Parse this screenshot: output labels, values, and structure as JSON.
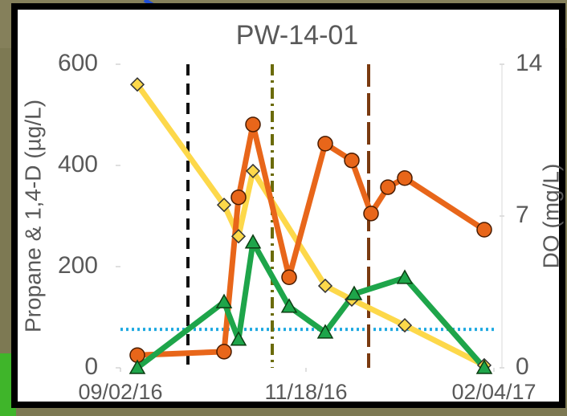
{
  "chart_data": {
    "type": "line",
    "title": "PW-14-01",
    "y_label": "Propane & 1,4-D (µg/L)",
    "y2_label": "DO (mg/L)",
    "xlim": [
      "2016-09-02",
      "2017-02-04"
    ],
    "xticks": [
      {
        "value": "2016-09-02",
        "label": "09/02/16"
      },
      {
        "value": "2016-11-18",
        "label": "11/18/16"
      },
      {
        "value": "2017-02-04",
        "label": "02/04/17"
      }
    ],
    "ylim": [
      0,
      600
    ],
    "yticks": [
      0,
      200,
      400,
      600
    ],
    "y2lim": [
      0,
      14
    ],
    "y2ticks": [
      0,
      7,
      14
    ],
    "series": [
      {
        "color": "#fdd84a",
        "marker": "diamond",
        "x": [
          "2016-09-09",
          "2016-10-15",
          "2016-10-21",
          "2016-10-27",
          "2016-11-26",
          "2016-12-07",
          "2016-12-29",
          "2017-01-31"
        ],
        "values": [
          560,
          322,
          260,
          389,
          162,
          135,
          84,
          5
        ]
      },
      {
        "color": "#e8661a",
        "marker": "circle",
        "x": [
          "2016-09-09",
          "2016-10-15",
          "2016-10-21",
          "2016-10-27",
          "2016-11-11",
          "2016-11-26",
          "2016-12-07",
          "2016-12-15",
          "2016-12-22",
          "2016-12-29",
          "2017-01-31"
        ],
        "values": [
          25,
          32,
          337,
          481,
          179,
          443,
          410,
          305,
          357,
          375,
          273
        ]
      },
      {
        "color": "#1ea54a",
        "marker": "triangle",
        "x": [
          "2016-09-09",
          "2016-10-15",
          "2016-10-21",
          "2016-10-27",
          "2016-11-11",
          "2016-11-26",
          "2016-12-08",
          "2016-12-29",
          "2017-01-31"
        ],
        "values": [
          0,
          130,
          56,
          248,
          121,
          70,
          146,
          178,
          0
        ]
      }
    ],
    "hlines": [
      {
        "value": 76,
        "color": "#1fa9e1",
        "dash": "dotted"
      }
    ],
    "vlines": [
      {
        "x": "2016-09-30",
        "color": "#111111",
        "dash": "dashed"
      },
      {
        "x": "2016-11-04",
        "color": "#6b6b0a",
        "dash": "dashdot"
      },
      {
        "x": "2016-12-14",
        "color": "#7a3a10",
        "dash": "longdash"
      }
    ]
  }
}
